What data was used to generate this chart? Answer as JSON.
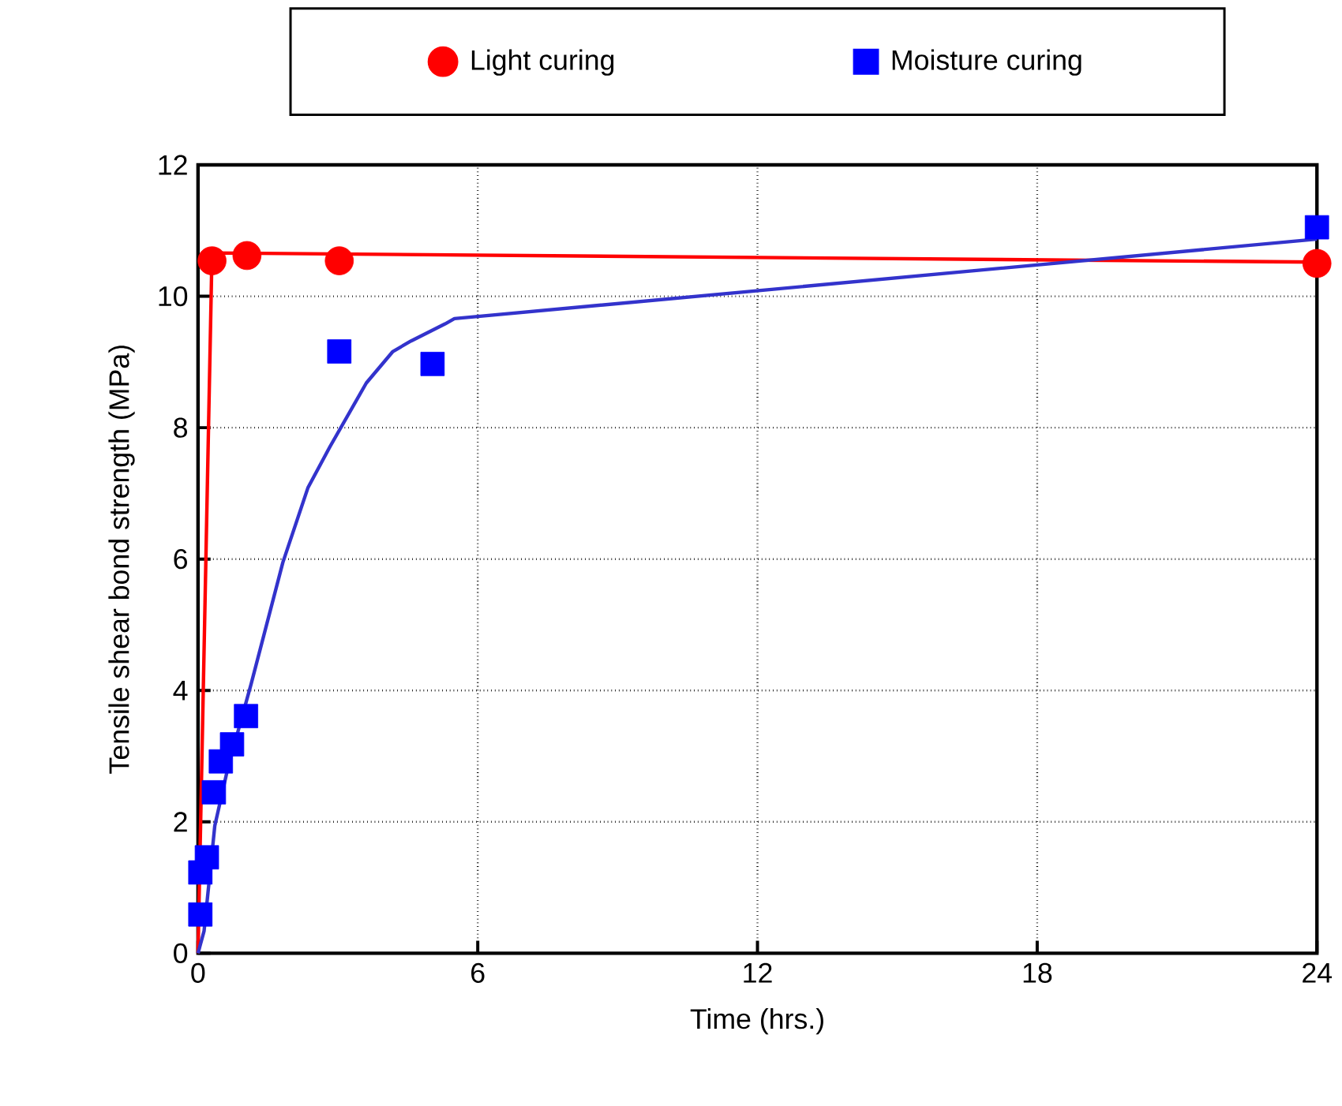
{
  "chart_data": {
    "type": "scatter",
    "xlabel": "Time (hrs.)",
    "ylabel": "Tensile shear bond strength (MPa)",
    "xlim": [
      0,
      24
    ],
    "ylim": [
      0,
      12
    ],
    "xticks": [
      0,
      6,
      12,
      18,
      24
    ],
    "yticks": [
      0,
      2,
      4,
      6,
      8,
      10,
      12
    ],
    "grid": true,
    "legend": "top",
    "series": [
      {
        "name": "Light curing",
        "type": "scatter",
        "marker": "circle",
        "color": "#ff0000",
        "x": [
          0.3,
          1.05,
          3.03,
          24
        ],
        "values": [
          10.54,
          10.62,
          10.54,
          10.5
        ]
      },
      {
        "name": "Moisture curing",
        "type": "scatter",
        "marker": "square",
        "color": "#0000ff",
        "x": [
          0.05,
          0.05,
          0.19,
          0.34,
          0.49,
          0.73,
          1.03,
          3.03,
          5.03,
          24
        ],
        "values": [
          0.59,
          1.23,
          1.46,
          2.45,
          2.92,
          3.18,
          3.61,
          9.16,
          8.97,
          11.05
        ]
      },
      {
        "type": "line",
        "marker": "none",
        "line_style": "solid",
        "color": "#ff0000",
        "x": [
          0,
          0.3,
          24
        ],
        "values": [
          0,
          10.66,
          10.52
        ]
      },
      {
        "type": "line",
        "marker": "none",
        "line_style": "solid",
        "color": "#3333cc",
        "x": [
          0,
          0.13,
          0.36,
          0.64,
          1.14,
          1.82,
          2.36,
          2.83,
          3.61,
          4.18,
          4.57,
          5.3,
          5.5,
          24
        ],
        "values": [
          0,
          0.34,
          1.94,
          2.82,
          4.1,
          5.95,
          7.09,
          7.71,
          8.68,
          9.16,
          9.32,
          9.58,
          9.66,
          10.87
        ]
      }
    ]
  }
}
